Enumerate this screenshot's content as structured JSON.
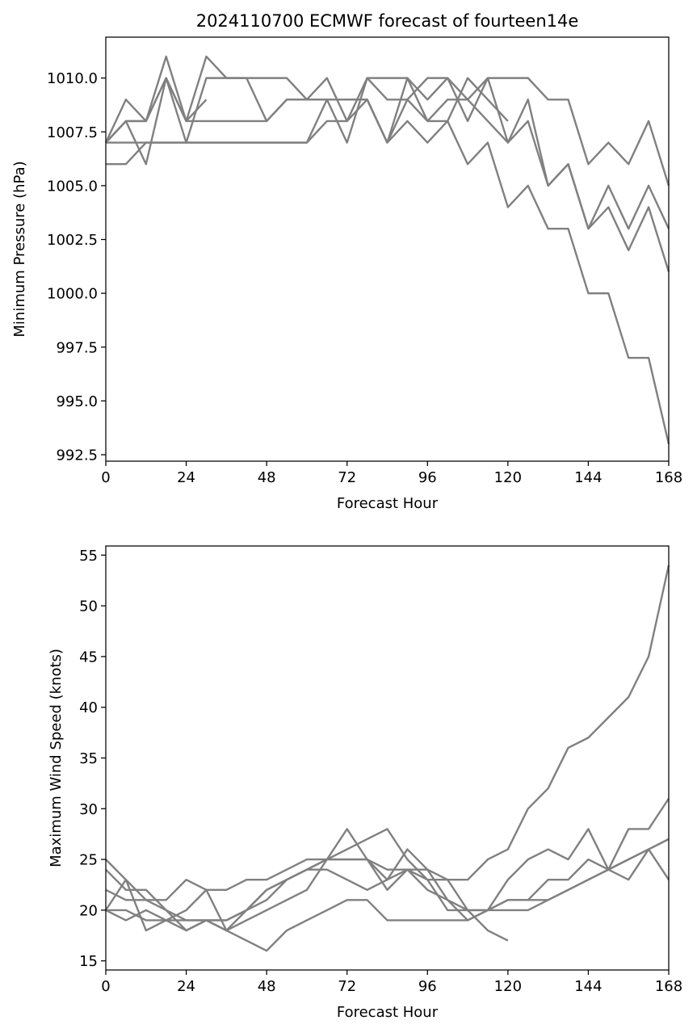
{
  "chart_data": [
    {
      "type": "line",
      "title": "2024110700 ECMWF forecast of fourteen14e",
      "xlabel": "Forecast Hour",
      "ylabel": "Minimum Pressure (hPa)",
      "xlim": [
        0,
        168
      ],
      "ylim": [
        992.2,
        1011.9
      ],
      "x_ticks": [
        0,
        24,
        48,
        72,
        96,
        120,
        144,
        168
      ],
      "x_tick_labels": [
        "0",
        "24",
        "48",
        "72",
        "96",
        "120",
        "144",
        "168"
      ],
      "y_ticks": [
        992.5,
        995.0,
        997.5,
        1000.0,
        1002.5,
        1005.0,
        1007.5,
        1010.0
      ],
      "y_tick_labels": [
        "992.5",
        "995.0",
        "997.5",
        "1000.0",
        "1002.5",
        "1005.0",
        "1007.5",
        "1010.0"
      ],
      "line_color": "#808080",
      "grid": false,
      "series": [
        {
          "x": [
            0,
            6,
            12,
            18,
            24,
            30
          ],
          "values": [
            1007,
            1008,
            1008,
            1010,
            1008,
            1009
          ]
        },
        {
          "x": [
            0,
            6,
            12,
            18,
            24,
            30,
            36,
            42,
            48,
            54,
            60,
            66,
            72,
            78,
            84,
            90,
            96,
            102,
            108,
            114,
            120
          ],
          "values": [
            1007,
            1008,
            1008,
            1010,
            1008,
            1008,
            1008,
            1008,
            1008,
            1009,
            1009,
            1009,
            1009,
            1009,
            1007,
            1008,
            1007,
            1008,
            1010,
            1009,
            1008
          ]
        },
        {
          "x": [
            0,
            6,
            12,
            18,
            24,
            30,
            36,
            42,
            48,
            54,
            60,
            66,
            72,
            78,
            84,
            90,
            96,
            102,
            108,
            114,
            120,
            126,
            132,
            138,
            144,
            150,
            156,
            162,
            168
          ],
          "values": [
            1007,
            1009,
            1008,
            1011,
            1008,
            1011,
            1010,
            1010,
            1010,
            1010,
            1009,
            1010,
            1008,
            1010,
            1010,
            1010,
            1009,
            1010,
            1009,
            1010,
            1010,
            1010,
            1009,
            1009,
            1006,
            1007,
            1006,
            1008,
            1005
          ]
        },
        {
          "x": [
            0,
            6,
            12,
            18,
            24,
            30,
            36,
            42,
            48,
            54,
            60,
            66,
            72,
            78,
            84,
            90,
            96,
            102,
            108,
            114,
            120,
            126,
            132,
            138,
            144,
            150,
            156,
            162,
            168
          ],
          "values": [
            1006,
            1006,
            1007,
            1007,
            1007,
            1007,
            1007,
            1007,
            1007,
            1007,
            1007,
            1008,
            1008,
            1009,
            1007,
            1009,
            1008,
            1008,
            1006,
            1007,
            1004,
            1005,
            1003,
            1003,
            1000,
            1000,
            997,
            997,
            993
          ]
        },
        {
          "x": [
            0,
            6,
            12,
            18,
            24,
            30,
            36,
            42,
            48,
            54,
            60,
            66,
            72,
            78,
            84,
            90,
            96,
            102,
            108,
            114,
            120,
            126,
            132,
            138,
            144,
            150,
            156,
            162,
            168
          ],
          "values": [
            1007,
            1008,
            1006,
            1010,
            1007,
            1010,
            1010,
            1010,
            1008,
            1009,
            1009,
            1009,
            1007,
            1010,
            1009,
            1009,
            1010,
            1010,
            1008,
            1010,
            1007,
            1009,
            1005,
            1006,
            1003,
            1005,
            1003,
            1005,
            1003
          ]
        },
        {
          "x": [
            0,
            6,
            12,
            18,
            24,
            30,
            36,
            42,
            48,
            54,
            60,
            66,
            72,
            78,
            84,
            90,
            96,
            102,
            108,
            114,
            120,
            126,
            132,
            138,
            144,
            150,
            156,
            162,
            168
          ],
          "values": [
            1007,
            1007,
            1007,
            1007,
            1007,
            1007,
            1007,
            1007,
            1007,
            1007,
            1007,
            1009,
            1009,
            1009,
            1007,
            1010,
            1008,
            1009,
            1009,
            1008,
            1007,
            1008,
            1005,
            1006,
            1003,
            1004,
            1002,
            1004,
            1001
          ]
        }
      ]
    },
    {
      "type": "line",
      "title": "",
      "xlabel": "Forecast Hour",
      "ylabel": "Maximum Wind Speed (knots)",
      "xlim": [
        0,
        168
      ],
      "ylim": [
        14.1,
        55.9
      ],
      "x_ticks": [
        0,
        24,
        48,
        72,
        96,
        120,
        144,
        168
      ],
      "x_tick_labels": [
        "0",
        "24",
        "48",
        "72",
        "96",
        "120",
        "144",
        "168"
      ],
      "y_ticks": [
        15,
        20,
        25,
        30,
        35,
        40,
        45,
        50,
        55
      ],
      "y_tick_labels": [
        "15",
        "20",
        "25",
        "30",
        "35",
        "40",
        "45",
        "50",
        "55"
      ],
      "line_color": "#808080",
      "grid": false,
      "series": [
        {
          "x": [
            0,
            6,
            12,
            18,
            24,
            30,
            36,
            42,
            48,
            54,
            60,
            66,
            72,
            78,
            84,
            90,
            96,
            102,
            108,
            114,
            120
          ],
          "values": [
            25,
            23,
            21,
            20,
            19,
            19,
            18,
            20,
            21,
            23,
            24,
            24,
            23,
            22,
            23,
            26,
            24,
            21,
            20,
            18,
            17
          ]
        },
        {
          "x": [
            0,
            6,
            12,
            18,
            24,
            30,
            36,
            42,
            48,
            54,
            60,
            66,
            72,
            78,
            84,
            90,
            96,
            102,
            108,
            114,
            120,
            126,
            132,
            138,
            144,
            150,
            156,
            162,
            168
          ],
          "values": [
            22,
            21,
            21,
            21,
            23,
            22,
            22,
            23,
            23,
            24,
            25,
            25,
            25,
            25,
            24,
            24,
            24,
            23,
            23,
            25,
            26,
            30,
            32,
            36,
            37,
            39,
            41,
            45,
            54
          ]
        },
        {
          "x": [
            0,
            6,
            12,
            18,
            24,
            30,
            36,
            42,
            48,
            54,
            60,
            66,
            72,
            78,
            84,
            90,
            96,
            102,
            108,
            114,
            120,
            126,
            132,
            138,
            144,
            150,
            156,
            162,
            168
          ],
          "values": [
            20,
            20,
            19,
            19,
            19,
            19,
            18,
            17,
            16,
            18,
            19,
            20,
            21,
            21,
            19,
            19,
            19,
            19,
            19,
            20,
            20,
            20,
            21,
            22,
            23,
            24,
            25,
            26,
            27
          ]
        },
        {
          "x": [
            0,
            6,
            12,
            18,
            24,
            30,
            36,
            42,
            48,
            54,
            60,
            66,
            72,
            78,
            84,
            90,
            96,
            102,
            108,
            114,
            120,
            126,
            132,
            138,
            144,
            150,
            156,
            162,
            168
          ],
          "values": [
            24,
            22,
            22,
            20,
            18,
            19,
            19,
            20,
            22,
            23,
            24,
            25,
            28,
            25,
            22,
            24,
            23,
            23,
            20,
            20,
            23,
            25,
            26,
            25,
            28,
            24,
            28,
            28,
            31
          ]
        },
        {
          "x": [
            0,
            6,
            12,
            18,
            24,
            30,
            36,
            42,
            48,
            54,
            60,
            66,
            72,
            78,
            84,
            90,
            96,
            102,
            108,
            114,
            120,
            126,
            132,
            138,
            144,
            150,
            156,
            162,
            168
          ],
          "values": [
            20,
            23,
            18,
            19,
            20,
            22,
            18,
            19,
            20,
            21,
            22,
            25,
            26,
            27,
            28,
            25,
            23,
            20,
            20,
            20,
            21,
            21,
            23,
            23,
            25,
            24,
            23,
            26,
            23
          ]
        },
        {
          "x": [
            0,
            6,
            12,
            18,
            24,
            30,
            36,
            42,
            48,
            54,
            60,
            66,
            72,
            78,
            84,
            90,
            96,
            102,
            108,
            114,
            120,
            126,
            132,
            138,
            144,
            150,
            156,
            162,
            168
          ],
          "values": [
            20,
            19,
            20,
            19,
            18,
            19,
            19,
            20,
            22,
            23,
            24,
            25,
            25,
            25,
            23,
            24,
            22,
            21,
            19,
            20,
            21,
            21,
            21,
            22,
            23,
            24,
            25,
            26,
            27
          ]
        }
      ]
    }
  ]
}
